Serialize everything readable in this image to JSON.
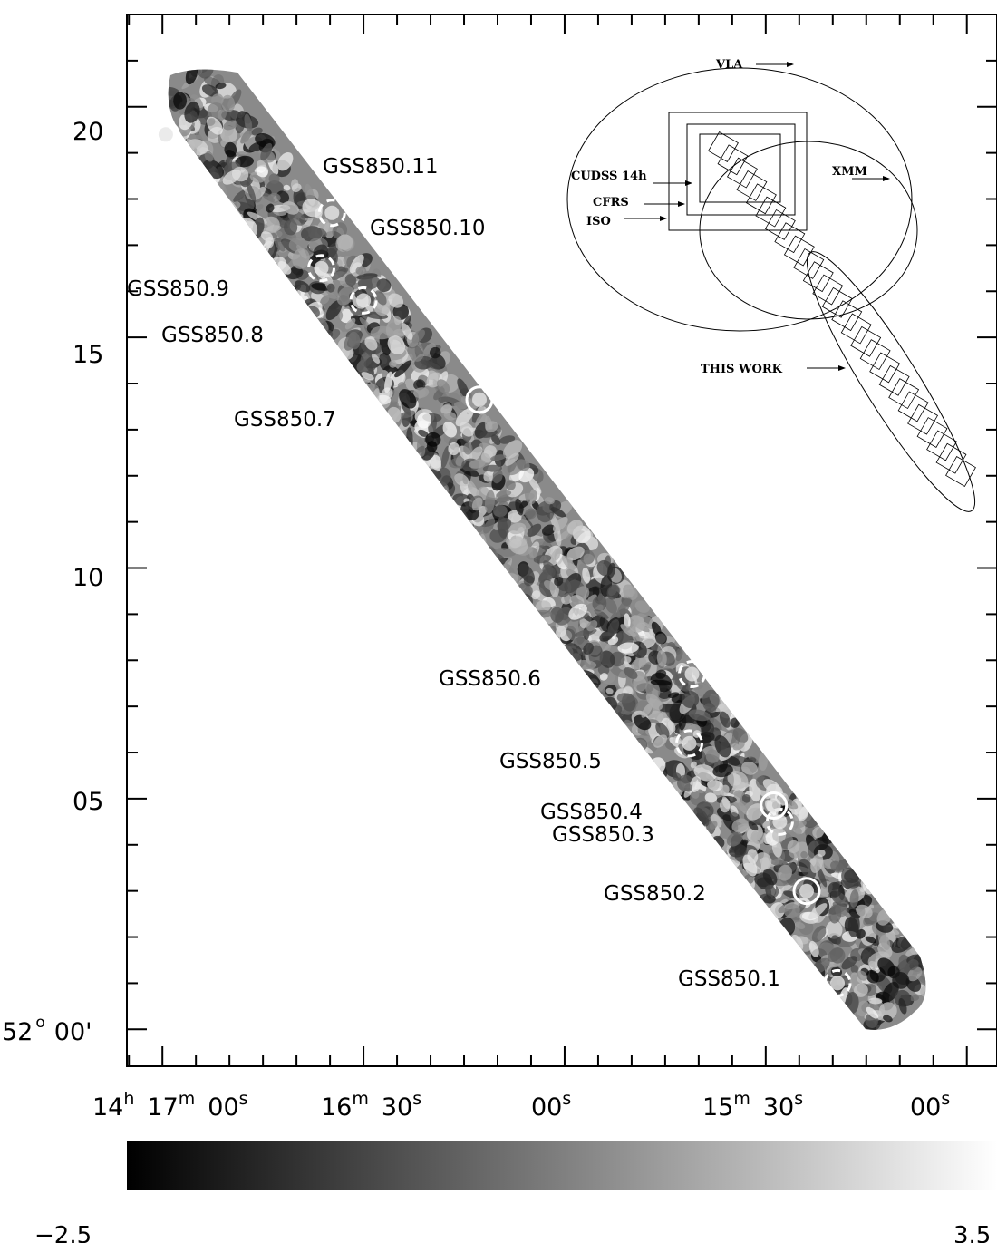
{
  "chart_data": {
    "type": "scatter",
    "title": "",
    "xlabel": "",
    "ylabel": "",
    "y_tick_labels": [
      {
        "text": "20",
        "value": 20
      },
      {
        "text": "15",
        "value": 15
      },
      {
        "text": "10",
        "value": 10
      },
      {
        "text": "05",
        "value": 5
      },
      {
        "text": "00'",
        "value": 0
      }
    ],
    "y_origin_label": {
      "deg": "52",
      "deg_sym": "o"
    },
    "x_tick_labels": [
      {
        "sec": 420,
        "parts": [
          [
            "14",
            "h"
          ],
          [
            "17",
            "m"
          ],
          [
            "00",
            "s"
          ]
        ]
      },
      {
        "sec": 390,
        "parts": [
          [
            "16",
            "m"
          ],
          [
            "30",
            "s"
          ]
        ]
      },
      {
        "sec": 360,
        "parts": [
          [
            "00",
            "s"
          ]
        ]
      },
      {
        "sec": 330,
        "parts": [
          [
            "15",
            "m"
          ],
          [
            "30",
            "s"
          ]
        ]
      },
      {
        "sec": 300,
        "parts": [
          [
            "00",
            "s"
          ]
        ]
      }
    ],
    "xlim_ra_seconds": [
      425.3,
      295.5
    ],
    "ylim_dec_arcmin": [
      -0.8,
      22.0
    ],
    "grid": false,
    "sources": [
      {
        "label": "GSS850.1",
        "ra_s": 319.3,
        "dec": 1.0,
        "style": "dashed"
      },
      {
        "label": "GSS850.2",
        "ra_s": 323.9,
        "dec": 3.0,
        "style": "solid"
      },
      {
        "label": "GSS850.3",
        "ra_s": 327.9,
        "dec": 4.5,
        "style": "dashed"
      },
      {
        "label": "GSS850.4",
        "ra_s": 328.8,
        "dec": 4.85,
        "style": "solid"
      },
      {
        "label": "GSS850.5",
        "ra_s": 341.4,
        "dec": 6.2,
        "style": "dashed"
      },
      {
        "label": "GSS850.6",
        "ra_s": 341.0,
        "dec": 7.7,
        "style": "dashed"
      },
      {
        "label": "GSS850.7",
        "ra_s": 372.7,
        "dec": 13.65,
        "style": "solid"
      },
      {
        "label": "GSS850.8",
        "ra_s": 390.0,
        "dec": 15.8,
        "style": "dashed"
      },
      {
        "label": "GSS850.9",
        "ra_s": 396.3,
        "dec": 16.5,
        "style": "dashed"
      },
      {
        "label": "GSS850.10",
        "ra_s": 394.7,
        "dec": 17.7,
        "style": "dashed"
      },
      {
        "label": "GSS850.11",
        "ra_s": 419.5,
        "dec": 19.4,
        "style": "solid"
      }
    ],
    "colorbar": {
      "min_label": "−2.5",
      "max_label": "3.5",
      "min": -2.5,
      "max": 3.5,
      "colors": [
        "#000000",
        "#ffffff"
      ]
    },
    "inset": {
      "labels": {
        "vla": "VLA",
        "xmm": "XMM",
        "cudss": "CUDSS 14h",
        "cfrs": "CFRS",
        "iso": "ISO",
        "this_work": "THIS WORK"
      }
    }
  }
}
